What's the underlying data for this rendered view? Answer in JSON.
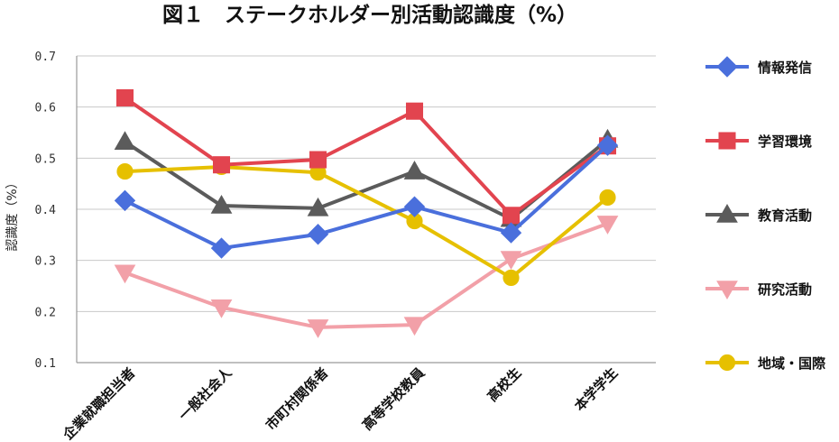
{
  "chart_data": {
    "type": "line",
    "title": "図１　ステークホルダー別活動認識度（%）",
    "xlabel": "",
    "ylabel": "認識度（%）",
    "ylim": [
      0.1,
      0.7
    ],
    "yticks": [
      "0.1",
      "0.2",
      "0.3",
      "0.4",
      "0.5",
      "0.6",
      "0.7"
    ],
    "grid": true,
    "legend": "right",
    "categories": [
      "企業就職担当者",
      "一般社会人",
      "市町村関係者",
      "高等学校教員",
      "高校生",
      "本学学生"
    ],
    "series": [
      {
        "name": "情報発信",
        "color": "#4a6fdc",
        "marker": "diamond-icon",
        "values": [
          0.417,
          0.324,
          0.351,
          0.405,
          0.354,
          0.525
        ]
      },
      {
        "name": "学習環境",
        "color": "#e2444f",
        "marker": "square-icon",
        "values": [
          0.618,
          0.487,
          0.497,
          0.592,
          0.388,
          0.524
        ]
      },
      {
        "name": "教育活動",
        "color": "#5b5b5b",
        "marker": "triangle-up-icon",
        "values": [
          0.532,
          0.407,
          0.402,
          0.474,
          0.381,
          0.536
        ]
      },
      {
        "name": "研究活動",
        "color": "#f2a0a8",
        "marker": "triangle-down-icon",
        "values": [
          0.276,
          0.208,
          0.169,
          0.174,
          0.303,
          0.372
        ]
      },
      {
        "name": "地域・国際",
        "color": "#e6c000",
        "marker": "circle-icon",
        "values": [
          0.474,
          0.483,
          0.472,
          0.377,
          0.266,
          0.423
        ]
      }
    ]
  }
}
